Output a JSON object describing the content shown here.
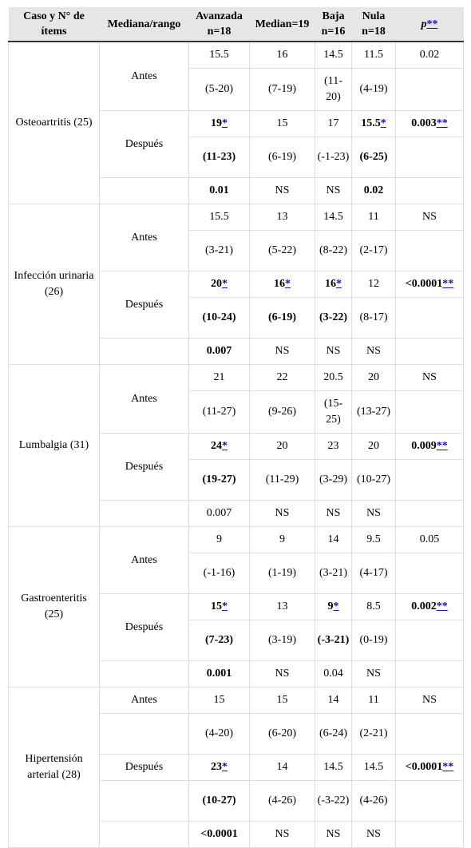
{
  "table": {
    "header": [
      "Caso y N° de ítems",
      "Mediana/rango",
      "Avanzada n=18",
      "Median=19",
      "Baja n=16",
      "Nula n=18",
      {
        "text": "p",
        "italic": true,
        "link": "**"
      }
    ],
    "groups": [
      {
        "case": "Osteoartritis (25)",
        "stages": [
          {
            "label": "Antes",
            "rows": [
              [
                "15.5",
                "16",
                "14.5",
                "11.5",
                "0.02"
              ],
              [
                "(5-20)",
                "(7-19)",
                "(11-20)",
                "(4-19)",
                null
              ]
            ]
          },
          {
            "label": "Después",
            "rows": [
              [
                {
                  "text": "19",
                  "link": "*",
                  "bold": true
                },
                "15",
                "17",
                {
                  "text": "15.5",
                  "link": "*",
                  "bold": true
                },
                {
                  "text": "0.003",
                  "link": "**",
                  "bold": true
                }
              ],
              [
                {
                  "text": "(11-23)",
                  "bold": true
                },
                "(6-19)",
                "(-1-23)",
                {
                  "text": "(6-25)",
                  "bold": true
                },
                null
              ]
            ]
          },
          {
            "label": null,
            "rows": [
              [
                {
                  "text": "0.01",
                  "bold": true
                },
                "NS",
                "NS",
                {
                  "text": "0.02",
                  "bold": true
                },
                null
              ]
            ]
          }
        ]
      },
      {
        "case": "Infección urinaria (26)",
        "stages": [
          {
            "label": "Antes",
            "rows": [
              [
                "15.5",
                "13",
                "14.5",
                "11",
                "NS"
              ],
              [
                "(3-21)",
                "(5-22)",
                "(8-22)",
                "(2-17)",
                null
              ]
            ]
          },
          {
            "label": "Después",
            "rows": [
              [
                {
                  "text": "20",
                  "link": "*",
                  "bold": true
                },
                {
                  "text": "16",
                  "link": "*",
                  "bold": true
                },
                {
                  "text": "16",
                  "link": "*",
                  "bold": true
                },
                "12",
                {
                  "text": "<0.0001",
                  "link": "**",
                  "bold": true
                }
              ],
              [
                {
                  "text": "(10-24)",
                  "bold": true
                },
                {
                  "text": "(6-19)",
                  "bold": true
                },
                {
                  "text": "(3-22)",
                  "bold": true
                },
                "(8-17)",
                null
              ]
            ]
          },
          {
            "label": null,
            "rows": [
              [
                {
                  "text": "0.007",
                  "bold": true
                },
                "NS",
                "NS",
                "NS",
                null
              ]
            ]
          }
        ]
      },
      {
        "case": "Lumbalgia (31)",
        "stages": [
          {
            "label": "Antes",
            "rows": [
              [
                "21",
                "22",
                "20.5",
                "20",
                "NS"
              ],
              [
                "(11-27)",
                "(9-26)",
                "(15-25)",
                "(13-27)",
                null
              ]
            ]
          },
          {
            "label": "Después",
            "rows": [
              [
                {
                  "text": "24",
                  "link": "*",
                  "bold": true
                },
                "20",
                "23",
                "20",
                {
                  "text": "0.009",
                  "link": "**",
                  "bold": true
                }
              ],
              [
                {
                  "text": "(19-27)",
                  "bold": true
                },
                "(11-29)",
                "(3-29)",
                "(10-27)",
                null
              ]
            ]
          },
          {
            "label": null,
            "rows": [
              [
                "0.007",
                "NS",
                "NS",
                "NS",
                null
              ]
            ]
          }
        ]
      },
      {
        "case": "Gastroenteritis (25)",
        "stages": [
          {
            "label": "Antes",
            "rows": [
              [
                "9",
                "9",
                "14",
                "9.5",
                "0.05"
              ],
              [
                "(-1-16)",
                "(1-19)",
                "(3-21)",
                "(4-17)",
                null
              ]
            ]
          },
          {
            "label": "Después",
            "rows": [
              [
                {
                  "text": "15",
                  "link": "*",
                  "bold": true
                },
                "13",
                {
                  "text": "9",
                  "link": "*",
                  "bold": true
                },
                "8.5",
                {
                  "text": "0.002",
                  "link": "**",
                  "bold": true
                }
              ],
              [
                {
                  "text": "(7-23)",
                  "bold": true
                },
                "(3-19)",
                {
                  "text": "(-3-21)",
                  "bold": true
                },
                "(0-19)",
                null
              ]
            ]
          },
          {
            "label": null,
            "rows": [
              [
                {
                  "text": "0.001",
                  "bold": true
                },
                "NS",
                "0.04",
                "NS",
                null
              ]
            ]
          }
        ]
      },
      {
        "case": "Hipertensión arterial (28)",
        "stages": [
          {
            "label": "Antes",
            "rows": [
              [
                "15",
                "15",
                "14",
                "11",
                "NS"
              ]
            ]
          },
          {
            "label": null,
            "rows": [
              [
                "(4-20)",
                "(6-20)",
                "(6-24)",
                "(2-21)",
                null
              ]
            ]
          },
          {
            "label": "Después",
            "rows": [
              [
                {
                  "text": "23",
                  "link": "*",
                  "bold": true
                },
                "14",
                "14.5",
                "14.5",
                {
                  "text": "<0.0001",
                  "link": "**",
                  "bold": true
                }
              ]
            ]
          },
          {
            "label": null,
            "rows": [
              [
                {
                  "text": "(10-27)",
                  "bold": true
                },
                "(4-26)",
                "(-3-22)",
                "(4-26)",
                null
              ]
            ]
          },
          {
            "label": null,
            "rows": [
              [
                {
                  "text": "<0.0001",
                  "bold": true
                },
                "NS",
                "NS",
                "NS",
                null
              ]
            ]
          }
        ]
      }
    ]
  }
}
